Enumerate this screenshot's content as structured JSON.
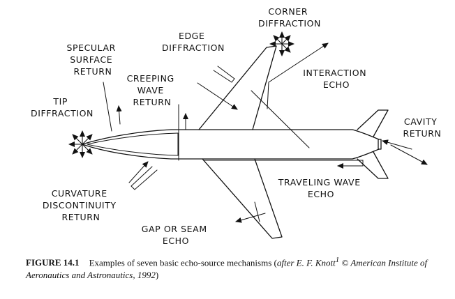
{
  "labels": {
    "corner": [
      "CORNER",
      "DIFFRACTION"
    ],
    "edge": [
      "EDGE",
      "DIFFRACTION"
    ],
    "specular": [
      "SPECULAR",
      "SURFACE",
      "RETURN"
    ],
    "creeping": [
      "CREEPING",
      "WAVE",
      "RETURN"
    ],
    "interaction": [
      "INTERACTION",
      "ECHO"
    ],
    "tip": [
      "TIP",
      "DIFFRACTION"
    ],
    "cavity": [
      "CAVITY",
      "RETURN"
    ],
    "curvature": [
      "CURVATURE",
      "DISCONTINUITY",
      "RETURN"
    ],
    "traveling": [
      "TRAVELING WAVE",
      "ECHO"
    ],
    "gap": [
      "GAP OR SEAM",
      "ECHO"
    ]
  },
  "caption": {
    "number": "FIGURE 14.1",
    "text": "Examples of seven basic echo-source mechanisms (",
    "attribution": "after E. F. Knott",
    "superscript": "1",
    "source": " © American Institute of Aeronautics and Astronautics, 1992",
    "closing": ")"
  }
}
